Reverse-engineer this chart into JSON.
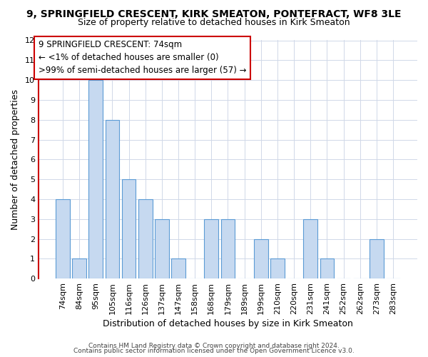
{
  "title": "9, SPRINGFIELD CRESCENT, KIRK SMEATON, PONTEFRACT, WF8 3LE",
  "subtitle": "Size of property relative to detached houses in Kirk Smeaton",
  "xlabel": "Distribution of detached houses by size in Kirk Smeaton",
  "ylabel": "Number of detached properties",
  "bar_labels": [
    "74sqm",
    "84sqm",
    "95sqm",
    "105sqm",
    "116sqm",
    "126sqm",
    "137sqm",
    "147sqm",
    "158sqm",
    "168sqm",
    "179sqm",
    "189sqm",
    "199sqm",
    "210sqm",
    "220sqm",
    "231sqm",
    "241sqm",
    "252sqm",
    "262sqm",
    "273sqm",
    "283sqm"
  ],
  "bar_values": [
    4,
    1,
    10,
    8,
    5,
    4,
    3,
    1,
    0,
    3,
    3,
    0,
    2,
    1,
    0,
    3,
    1,
    0,
    0,
    2,
    0
  ],
  "bar_color": "#c6d9f0",
  "bar_edge_color": "#5b9bd5",
  "highlight_bar_index": 0,
  "grid_color": "#d0d8e8",
  "background_color": "#ffffff",
  "ylim": [
    0,
    12
  ],
  "yticks": [
    0,
    1,
    2,
    3,
    4,
    5,
    6,
    7,
    8,
    9,
    10,
    11,
    12
  ],
  "annotation_box_text": "9 SPRINGFIELD CRESCENT: 74sqm\n← <1% of detached houses are smaller (0)\n>99% of semi-detached houses are larger (57) →",
  "annotation_box_color": "#ffffff",
  "annotation_box_edge_color": "#cc0000",
  "footer_line1": "Contains HM Land Registry data © Crown copyright and database right 2024.",
  "footer_line2": "Contains public sector information licensed under the Open Government Licence v3.0.",
  "title_fontsize": 10,
  "subtitle_fontsize": 9,
  "xlabel_fontsize": 9,
  "ylabel_fontsize": 9,
  "tick_fontsize": 8,
  "annotation_fontsize": 8.5,
  "footer_fontsize": 6.5
}
